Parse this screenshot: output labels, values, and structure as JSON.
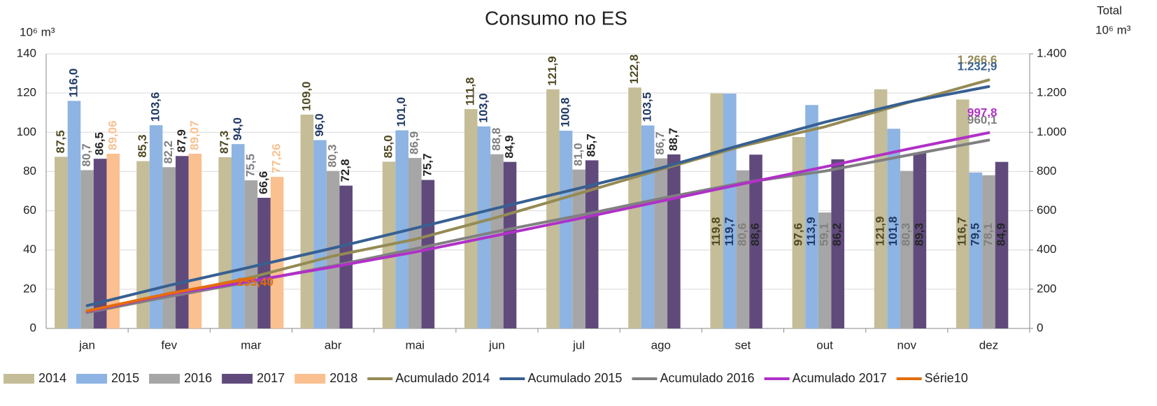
{
  "chart_data": {
    "type": "bar_line",
    "title": "Consumo no ES",
    "y_label": "10⁶ m³",
    "y2_title": "Total",
    "y2_label": "10⁶ m³",
    "categories": [
      "jan",
      "fev",
      "mar",
      "abr",
      "mai",
      "jun",
      "jul",
      "ago",
      "set",
      "out",
      "nov",
      "dez"
    ],
    "ylim": [
      0,
      140
    ],
    "yticks": [
      0,
      20,
      40,
      60,
      80,
      100,
      120,
      140
    ],
    "y2lim": [
      0,
      1400
    ],
    "y2ticks": [
      0,
      200,
      400,
      600,
      800,
      {
        "value": 1000,
        "label": "1.000"
      },
      {
        "value": 1200,
        "label": "1.200"
      },
      {
        "value": 1400,
        "label": "1.400"
      }
    ],
    "grid": true,
    "legend": "bottom",
    "series": [
      {
        "name": "2014",
        "kind": "bar",
        "color": "#c4bd97",
        "label_color": "#4f4a22",
        "values": [
          87.5,
          85.3,
          87.3,
          109.0,
          85.0,
          111.8,
          121.9,
          122.8,
          119.8,
          97.6,
          121.9,
          116.7
        ],
        "value_labels": [
          "87,5",
          "85,3",
          "87,3",
          "109,0",
          "85,0",
          "111,8",
          "121,9",
          "122,8",
          "119,8",
          "97,6",
          "121,9",
          "116,7"
        ]
      },
      {
        "name": "2015",
        "kind": "bar",
        "color": "#8db4e2",
        "label_color": "#1f3864",
        "values": [
          116.0,
          103.6,
          94.0,
          96.0,
          101.0,
          103.0,
          100.8,
          103.5,
          119.7,
          113.9,
          101.8,
          79.5
        ],
        "value_labels": [
          "116,0",
          "103,6",
          "94,0",
          "96,0",
          "101,0",
          "103,0",
          "100,8",
          "103,5",
          "119,7",
          "113,9",
          "101,8",
          "79,5"
        ]
      },
      {
        "name": "2016",
        "kind": "bar",
        "color": "#a6a6a6",
        "label_color": "#7f7f7f",
        "values": [
          80.7,
          82.2,
          75.5,
          80.3,
          86.9,
          88.8,
          81.0,
          86.7,
          80.6,
          59.1,
          80.3,
          78.1
        ],
        "value_labels": [
          "80,7",
          "82,2",
          "75,5",
          "80,3",
          "86,9",
          "88,8",
          "81,0",
          "86,7",
          "80,6",
          "59,1",
          "80,3",
          "78,1"
        ]
      },
      {
        "name": "2017",
        "kind": "bar",
        "color": "#604a7b",
        "label_color": "#262626",
        "values": [
          86.5,
          87.9,
          66.6,
          72.8,
          75.7,
          84.9,
          85.7,
          88.7,
          88.6,
          86.2,
          89.3,
          84.9
        ],
        "value_labels": [
          "86,5",
          "87,9",
          "66,6",
          "72,8",
          "75,7",
          "84,9",
          "85,7",
          "88,7",
          "88,6",
          "86,2",
          "89,3",
          "84,9"
        ]
      },
      {
        "name": "2018",
        "kind": "bar",
        "color": "#fac090",
        "label_color": "#fac090",
        "values": [
          89.06,
          89.07,
          77.26,
          null,
          null,
          null,
          null,
          null,
          null,
          null,
          null,
          null
        ],
        "value_labels": [
          "89,06",
          "89,07",
          "77,26",
          null,
          null,
          null,
          null,
          null,
          null,
          null,
          null,
          null
        ]
      },
      {
        "name": "Acumulado 2014",
        "kind": "line",
        "axis": "y2",
        "color": "#948a54",
        "values": [
          87.5,
          172.8,
          260.1,
          369.1,
          454.1,
          565.9,
          687.8,
          810.6,
          930.4,
          1028.0,
          1149.9,
          1266.6
        ],
        "value_labels": [
          null,
          null,
          null,
          null,
          null,
          null,
          null,
          null,
          null,
          null,
          null,
          "1.266,6"
        ]
      },
      {
        "name": "Acumulado 2015",
        "kind": "line",
        "axis": "y2",
        "color": "#376092",
        "values": [
          116.0,
          219.6,
          313.6,
          409.6,
          510.6,
          613.6,
          714.4,
          817.9,
          937.6,
          1051.5,
          1153.3,
          1232.9
        ],
        "value_labels": [
          null,
          null,
          null,
          null,
          null,
          null,
          null,
          null,
          null,
          null,
          null,
          "1.232,9"
        ]
      },
      {
        "name": "Acumulado 2016",
        "kind": "line",
        "axis": "y2",
        "color": "#808080",
        "values": [
          80.7,
          162.9,
          238.4,
          318.7,
          405.6,
          494.4,
          575.4,
          662.1,
          742.7,
          801.8,
          882.1,
          960.1
        ],
        "value_labels": [
          null,
          null,
          null,
          null,
          null,
          null,
          null,
          null,
          null,
          null,
          null,
          "960,1"
        ]
      },
      {
        "name": "Acumulado 2017",
        "kind": "line",
        "axis": "y2",
        "color": "#b030c8",
        "values": [
          86.5,
          174.4,
          241.0,
          313.8,
          389.5,
          474.4,
          560.1,
          648.8,
          737.4,
          823.6,
          912.9,
          997.8
        ],
        "value_labels": [
          null,
          null,
          null,
          null,
          null,
          null,
          null,
          null,
          null,
          null,
          null,
          "997,8"
        ]
      },
      {
        "name": "Série10",
        "kind": "line",
        "axis": "y2",
        "color": "#e46c0a",
        "values": [
          89.06,
          178.13,
          255.4,
          null,
          null,
          null,
          null,
          null,
          null,
          null,
          null,
          null
        ],
        "value_labels": [
          null,
          null,
          "255,40",
          null,
          null,
          null,
          null,
          null,
          null,
          null,
          null,
          null
        ]
      }
    ]
  }
}
